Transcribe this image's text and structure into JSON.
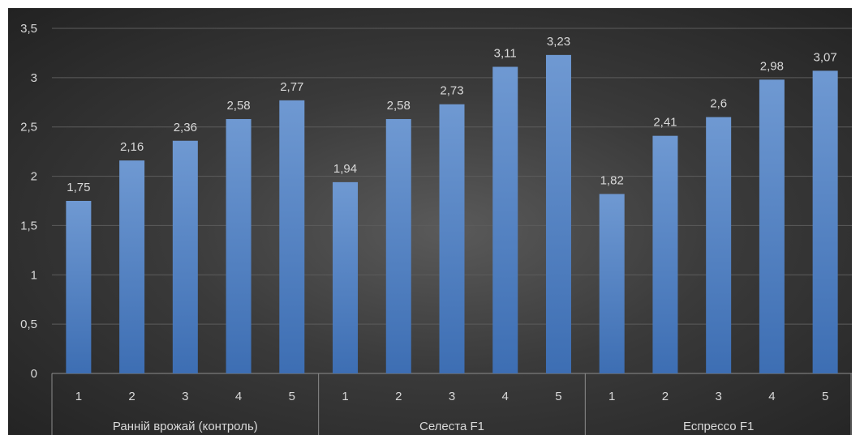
{
  "chart_data": {
    "type": "bar",
    "y_ticks": [
      "0",
      "0,5",
      "1",
      "1,5",
      "2",
      "2,5",
      "3",
      "3,5"
    ],
    "ylim": [
      0,
      3.5
    ],
    "grid": true,
    "legend": "none",
    "colors": {
      "bar_light": "#6f99d2",
      "bar_dark": "#3d6eb3",
      "grid": "#5c5c5c",
      "axis": "#8c8c8c",
      "text": "#d9d9d9"
    },
    "groups": [
      {
        "name": "Ранній врожай (контроль)",
        "categories": [
          "1",
          "2",
          "3",
          "4",
          "5"
        ],
        "values": [
          1.75,
          2.16,
          2.36,
          2.58,
          2.77
        ],
        "labels": [
          "1,75",
          "2,16",
          "2,36",
          "2,58",
          "2,77"
        ]
      },
      {
        "name": "Селеста F1",
        "categories": [
          "1",
          "2",
          "3",
          "4",
          "5"
        ],
        "values": [
          1.94,
          2.58,
          2.73,
          3.11,
          3.23
        ],
        "labels": [
          "1,94",
          "2,58",
          "2,73",
          "3,11",
          "3,23"
        ]
      },
      {
        "name": "Еспрессо F1",
        "categories": [
          "1",
          "2",
          "3",
          "4",
          "5"
        ],
        "values": [
          1.82,
          2.41,
          2.6,
          2.98,
          3.07
        ],
        "labels": [
          "1,82",
          "2,41",
          "2,6",
          "2,98",
          "3,07"
        ]
      }
    ]
  }
}
